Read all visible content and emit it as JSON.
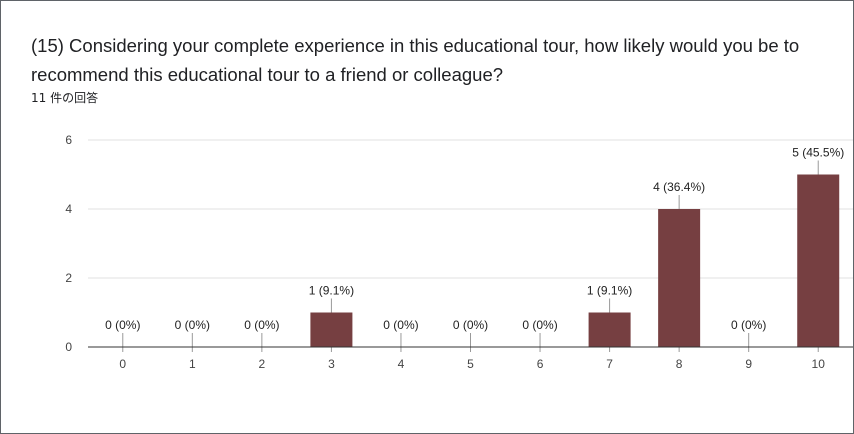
{
  "question": {
    "title": "(15) Considering your complete experience in this educational tour, how likely would you be to recommend this educational tour to a friend or colleague?",
    "response_count": "11 件の回答"
  },
  "colors": {
    "bar": "#763f41",
    "grid": "#e0e0e0",
    "axis": "#333333",
    "leader": "#999999"
  },
  "chart_data": {
    "type": "bar",
    "categories": [
      "0",
      "1",
      "2",
      "3",
      "4",
      "5",
      "6",
      "7",
      "8",
      "9",
      "10"
    ],
    "values": [
      0,
      0,
      0,
      1,
      0,
      0,
      0,
      1,
      4,
      0,
      5
    ],
    "data_labels": [
      "0 (0%)",
      "0 (0%)",
      "0 (0%)",
      "1 (9.1%)",
      "0 (0%)",
      "0 (0%)",
      "0 (0%)",
      "1 (9.1%)",
      "4 (36.4%)",
      "0 (0%)",
      "5 (45.5%)"
    ],
    "ylim": [
      0,
      6
    ],
    "yticks": [
      "0",
      "2",
      "4",
      "6"
    ],
    "grid": true,
    "title": "",
    "xlabel": "",
    "ylabel": ""
  }
}
